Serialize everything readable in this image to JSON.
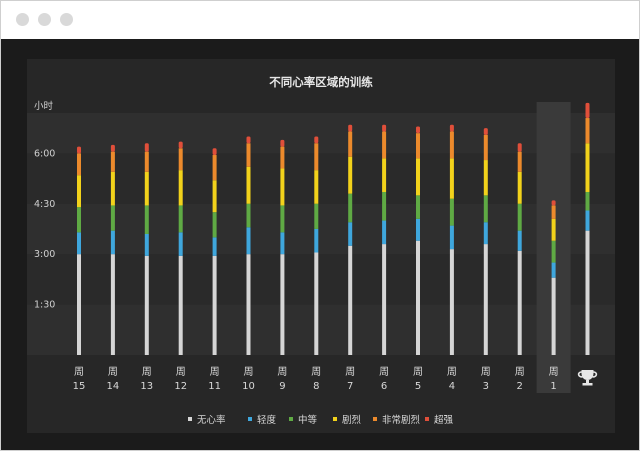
{
  "window": {
    "controls": [
      "close",
      "minimize",
      "maximize"
    ]
  },
  "chart_data": {
    "type": "bar",
    "stacked": true,
    "title": "不同心率区域的训练",
    "ylabel": "小时",
    "y_ticks": [
      "1:30",
      "3:00",
      "4:30",
      "6:00"
    ],
    "y_tick_values_hours": [
      1.5,
      3.0,
      4.5,
      6.0
    ],
    "ylim_hours": [
      0,
      7.2
    ],
    "grid": "horizontal bands",
    "legend_position": "bottom-center",
    "categories": [
      {
        "line1": "周",
        "line2": "15"
      },
      {
        "line1": "周",
        "line2": "14"
      },
      {
        "line1": "周",
        "line2": "13"
      },
      {
        "line1": "周",
        "line2": "12"
      },
      {
        "line1": "周",
        "line2": "11"
      },
      {
        "line1": "周",
        "line2": "10"
      },
      {
        "line1": "周",
        "line2": "9"
      },
      {
        "line1": "周",
        "line2": "8"
      },
      {
        "line1": "周",
        "line2": "7"
      },
      {
        "line1": "周",
        "line2": "6"
      },
      {
        "line1": "周",
        "line2": "5"
      },
      {
        "line1": "周",
        "line2": "4"
      },
      {
        "line1": "周",
        "line2": "3"
      },
      {
        "line1": "周",
        "line2": "2"
      },
      {
        "line1": "周",
        "line2": "1"
      },
      {
        "line1": "",
        "line2": "",
        "icon": "trophy-icon"
      }
    ],
    "highlighted_category_index": 14,
    "series": [
      {
        "name": "无心率",
        "color": "#d6d6d6",
        "values": [
          3.0,
          3.0,
          2.95,
          2.95,
          2.95,
          3.0,
          3.0,
          3.05,
          3.25,
          3.3,
          3.4,
          3.15,
          3.3,
          3.1,
          2.3,
          3.7
        ]
      },
      {
        "name": "轻度",
        "color": "#3fa7dd",
        "values": [
          0.65,
          0.7,
          0.65,
          0.7,
          0.55,
          0.8,
          0.65,
          0.7,
          0.7,
          0.7,
          0.65,
          0.7,
          0.65,
          0.6,
          0.45,
          0.6
        ]
      },
      {
        "name": "中等",
        "color": "#5faa44",
        "values": [
          0.75,
          0.75,
          0.85,
          0.8,
          0.75,
          0.7,
          0.8,
          0.75,
          0.85,
          0.85,
          0.7,
          0.8,
          0.8,
          0.8,
          0.65,
          0.55
        ]
      },
      {
        "name": "剧烈",
        "color": "#f2d21b",
        "values": [
          0.95,
          1.0,
          1.0,
          1.05,
          0.95,
          1.1,
          1.1,
          1.0,
          1.1,
          1.0,
          1.1,
          1.2,
          1.05,
          0.95,
          0.65,
          1.45
        ]
      },
      {
        "name": "非常剧烈",
        "color": "#ec8a2c",
        "values": [
          0.65,
          0.6,
          0.6,
          0.65,
          0.75,
          0.7,
          0.65,
          0.8,
          0.75,
          0.8,
          0.75,
          0.8,
          0.75,
          0.6,
          0.4,
          0.75
        ]
      },
      {
        "name": "超强",
        "color": "#e04f3a",
        "values": [
          0.2,
          0.2,
          0.25,
          0.2,
          0.2,
          0.2,
          0.2,
          0.2,
          0.2,
          0.2,
          0.2,
          0.2,
          0.2,
          0.25,
          0.15,
          0.45
        ]
      }
    ]
  }
}
